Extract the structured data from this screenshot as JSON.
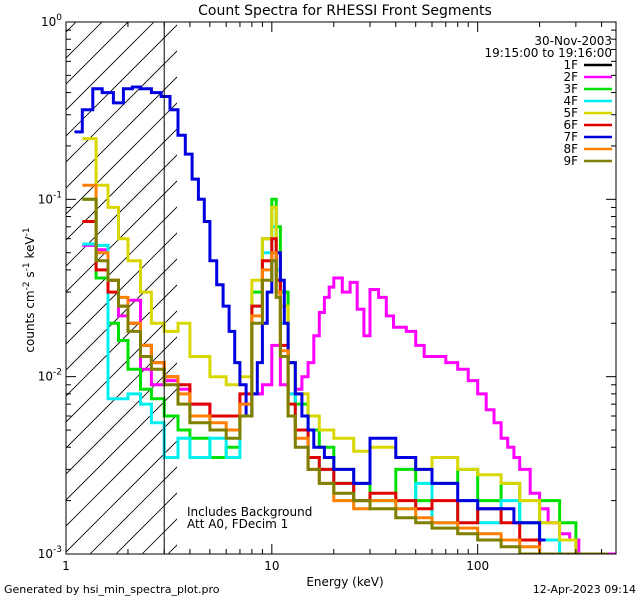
{
  "chart_data": {
    "type": "line",
    "title": "Count Spectra for RHESSI Front Segments",
    "xlabel": "Energy (keV)",
    "ylabel_parts": {
      "base": "counts cm",
      "exp1": "-2",
      "mid": " s",
      "exp2": "-1",
      "mid2": " keV",
      "exp3": "-1"
    },
    "xscale": "log",
    "yscale": "log",
    "xlim": [
      1,
      470
    ],
    "ylim": [
      0.001,
      1.0
    ],
    "xticks": [
      {
        "v": 1,
        "label": "1"
      },
      {
        "v": 10,
        "label": "10"
      },
      {
        "v": 100,
        "label": "100"
      }
    ],
    "yticks": [
      {
        "v": 1,
        "base": "10",
        "exp": "0"
      },
      {
        "v": 0.1,
        "base": "10",
        "exp": "-1"
      },
      {
        "v": 0.01,
        "base": "10",
        "exp": "-2"
      },
      {
        "v": 0.001,
        "base": "10",
        "exp": "-3"
      }
    ],
    "date": "30-Nov-2003",
    "time_range": "19:15:00 to 19:16:00",
    "hatched_below_keV": 3.0,
    "annotation_lines": [
      "Includes Background",
      "Att A0, FDecim 1"
    ],
    "series": [
      {
        "name": "1F",
        "color": "#000000",
        "x": [],
        "y": []
      },
      {
        "name": "2F",
        "color": "#ff00ff",
        "x": [
          1.2,
          1.4,
          1.6,
          1.8,
          2.0,
          2.3,
          2.6,
          3.0,
          3.5,
          4.0,
          5.0,
          6.0,
          7.0,
          8.0,
          9.0,
          10.0,
          11.0,
          12.0,
          13.0,
          14.0,
          15.0,
          16.0,
          17.0,
          18.0,
          19.0,
          20.0,
          22.0,
          24.0,
          26.0,
          28.0,
          30.0,
          33.0,
          36.0,
          39.0,
          42.0,
          45.0,
          50.0,
          55.0,
          60.0,
          70.0,
          80.0,
          90.0,
          100.0,
          110.0,
          120.0,
          130.0,
          140.0,
          150.0,
          160.0,
          180.0,
          200.0,
          220.0,
          250.0,
          280.0,
          310.0,
          350.0,
          400.0,
          450.0
        ],
        "y": [
          0.055,
          0.052,
          0.035,
          0.022,
          0.027,
          0.011,
          0.009,
          0.0095,
          0.0085,
          0.007,
          0.006,
          0.006,
          0.007,
          0.008,
          0.009,
          0.015,
          0.009,
          0.008,
          0.0085,
          0.01,
          0.012,
          0.017,
          0.023,
          0.028,
          0.032,
          0.036,
          0.03,
          0.034,
          0.024,
          0.017,
          0.031,
          0.028,
          0.022,
          0.019,
          0.019,
          0.018,
          0.015,
          0.013,
          0.013,
          0.012,
          0.011,
          0.0095,
          0.008,
          0.0065,
          0.0055,
          0.0045,
          0.004,
          0.0035,
          0.003,
          0.0022,
          0.0018,
          0.0015,
          0.0013,
          0.0012,
          0.001,
          0.001,
          0.001,
          0.001
        ]
      },
      {
        "name": "3F",
        "color": "#00e000",
        "x": [
          1.2,
          1.4,
          1.6,
          1.8,
          2.0,
          2.3,
          2.6,
          3.0,
          3.5,
          4.0,
          5.0,
          6.0,
          7.0,
          8.0,
          9.0,
          10.0,
          10.5,
          11.0,
          12.0,
          13.0,
          15.0,
          17.0,
          20.0,
          25.0,
          30.0,
          40.0,
          50.0,
          60.0,
          80.0,
          100.0,
          130.0,
          160.0,
          200.0,
          250.0,
          300.0,
          400.0
        ],
        "y": [
          0.1,
          0.036,
          0.02,
          0.016,
          0.011,
          0.0085,
          0.0075,
          0.006,
          0.005,
          0.0045,
          0.0035,
          0.004,
          0.006,
          0.03,
          0.06,
          0.1,
          0.07,
          0.03,
          0.012,
          0.007,
          0.005,
          0.004,
          0.003,
          0.0025,
          0.002,
          0.003,
          0.002,
          0.0025,
          0.003,
          0.002,
          0.0025,
          0.0015,
          0.002,
          0.0015,
          0.001,
          0.001
        ]
      },
      {
        "name": "4F",
        "color": "#00f0f0",
        "x": [
          1.2,
          1.4,
          1.6,
          1.8,
          2.0,
          2.3,
          2.6,
          3.0,
          3.5,
          4.0,
          5.0,
          6.0,
          7.0,
          8.0,
          9.0,
          10.0,
          10.5,
          11.0,
          12.0,
          13.0,
          15.0,
          17.0,
          20.0,
          25.0,
          30.0,
          40.0,
          50.0,
          60.0,
          80.0,
          100.0,
          130.0,
          160.0,
          200.0,
          250.0,
          300.0,
          400.0
        ],
        "y": [
          0.056,
          0.055,
          0.0075,
          0.0075,
          0.008,
          0.007,
          0.0055,
          0.0035,
          0.0045,
          0.0035,
          0.0045,
          0.0035,
          0.006,
          0.025,
          0.05,
          0.07,
          0.04,
          0.02,
          0.008,
          0.005,
          0.0035,
          0.003,
          0.0025,
          0.002,
          0.002,
          0.0018,
          0.0025,
          0.0015,
          0.002,
          0.0015,
          0.002,
          0.0015,
          0.0012,
          0.001,
          0.001,
          0.001
        ]
      },
      {
        "name": "5F",
        "color": "#d8d800",
        "x": [
          1.2,
          1.4,
          1.6,
          1.8,
          2.0,
          2.3,
          2.6,
          3.0,
          3.5,
          4.0,
          5.0,
          6.0,
          7.0,
          8.0,
          9.0,
          10.0,
          10.5,
          11.0,
          12.0,
          13.0,
          15.0,
          17.0,
          20.0,
          25.0,
          30.0,
          40.0,
          50.0,
          60.0,
          80.0,
          100.0,
          130.0,
          160.0,
          200.0,
          250.0,
          300.0,
          400.0
        ],
        "y": [
          0.22,
          0.12,
          0.09,
          0.06,
          0.045,
          0.03,
          0.02,
          0.018,
          0.02,
          0.013,
          0.01,
          0.009,
          0.01,
          0.035,
          0.06,
          0.09,
          0.05,
          0.025,
          0.012,
          0.008,
          0.006,
          0.005,
          0.0045,
          0.0038,
          0.004,
          0.0035,
          0.003,
          0.0035,
          0.003,
          0.0028,
          0.0025,
          0.002,
          0.0015,
          0.0012,
          0.001,
          0.001
        ]
      },
      {
        "name": "6F",
        "color": "#e00000",
        "x": [
          1.2,
          1.4,
          1.6,
          1.8,
          2.0,
          2.3,
          2.6,
          3.0,
          3.5,
          4.0,
          5.0,
          6.0,
          7.0,
          8.0,
          9.0,
          10.0,
          10.5,
          11.0,
          12.0,
          13.0,
          15.0,
          17.0,
          20.0,
          25.0,
          30.0,
          40.0,
          50.0,
          60.0,
          80.0,
          100.0,
          130.0,
          160.0,
          200.0,
          250.0,
          300.0,
          400.0
        ],
        "y": [
          0.075,
          0.04,
          0.03,
          0.025,
          0.02,
          0.015,
          0.012,
          0.01,
          0.009,
          0.007,
          0.006,
          0.006,
          0.008,
          0.025,
          0.045,
          0.06,
          0.035,
          0.015,
          0.007,
          0.005,
          0.0035,
          0.003,
          0.0025,
          0.002,
          0.0022,
          0.002,
          0.0018,
          0.002,
          0.0015,
          0.0018,
          0.0015,
          0.0012,
          0.001,
          0.001,
          0.001,
          0.001
        ]
      },
      {
        "name": "7F",
        "color": "#0000e0",
        "x": [
          1.1,
          1.2,
          1.35,
          1.5,
          1.7,
          1.9,
          2.1,
          2.3,
          2.6,
          2.9,
          3.2,
          3.5,
          3.8,
          4.1,
          4.4,
          4.7,
          5.0,
          5.4,
          5.8,
          6.2,
          6.6,
          7.0,
          7.5,
          8.0,
          8.5,
          9.0,
          9.5,
          10.0,
          10.5,
          11.0,
          11.5,
          12.0,
          13.0,
          14.0,
          15.0,
          16.0,
          18.0,
          20.0,
          25.0,
          30.0,
          40.0,
          50.0,
          60.0,
          80.0,
          100.0,
          150.0,
          200.0
        ],
        "y": [
          0.24,
          0.32,
          0.42,
          0.4,
          0.35,
          0.42,
          0.43,
          0.42,
          0.4,
          0.38,
          0.32,
          0.23,
          0.18,
          0.13,
          0.1,
          0.075,
          0.045,
          0.033,
          0.025,
          0.018,
          0.012,
          0.009,
          0.006,
          0.008,
          0.012,
          0.02,
          0.03,
          0.045,
          0.05,
          0.035,
          0.02,
          0.012,
          0.008,
          0.006,
          0.005,
          0.004,
          0.0035,
          0.003,
          0.0025,
          0.0045,
          0.0035,
          0.003,
          0.0025,
          0.002,
          0.0018,
          0.0015,
          0.0012
        ]
      },
      {
        "name": "8F",
        "color": "#ff8000",
        "x": [
          1.2,
          1.4,
          1.6,
          1.8,
          2.0,
          2.3,
          2.6,
          3.0,
          3.5,
          4.0,
          5.0,
          6.0,
          7.0,
          8.0,
          9.0,
          10.0,
          10.5,
          11.0,
          12.0,
          13.0,
          15.0,
          17.0,
          20.0,
          25.0,
          30.0,
          40.0,
          50.0,
          60.0,
          80.0,
          100.0,
          130.0,
          160.0,
          200.0,
          250.0,
          300.0,
          400.0
        ],
        "y": [
          0.12,
          0.05,
          0.035,
          0.028,
          0.02,
          0.015,
          0.012,
          0.01,
          0.008,
          0.006,
          0.0055,
          0.005,
          0.007,
          0.022,
          0.04,
          0.05,
          0.03,
          0.014,
          0.006,
          0.0045,
          0.003,
          0.0025,
          0.002,
          0.0018,
          0.002,
          0.0018,
          0.0016,
          0.0015,
          0.0014,
          0.0013,
          0.0012,
          0.0011,
          0.001,
          0.001,
          0.001,
          0.001
        ]
      },
      {
        "name": "9F",
        "color": "#7f7f00",
        "x": [
          1.2,
          1.4,
          1.6,
          1.8,
          2.0,
          2.3,
          2.6,
          3.0,
          3.5,
          4.0,
          5.0,
          6.0,
          7.0,
          8.0,
          9.0,
          10.0,
          10.5,
          11.0,
          12.0,
          13.0,
          15.0,
          17.0,
          20.0,
          25.0,
          30.0,
          40.0,
          50.0,
          60.0,
          80.0,
          100.0,
          130.0,
          160.0,
          200.0,
          250.0,
          300.0,
          400.0
        ],
        "y": [
          0.1,
          0.045,
          0.035,
          0.025,
          0.018,
          0.013,
          0.011,
          0.009,
          0.007,
          0.0055,
          0.005,
          0.0045,
          0.006,
          0.02,
          0.035,
          0.045,
          0.028,
          0.013,
          0.006,
          0.004,
          0.003,
          0.0025,
          0.0022,
          0.002,
          0.0018,
          0.0016,
          0.0015,
          0.0014,
          0.0013,
          0.0012,
          0.0011,
          0.001,
          0.001,
          0.001,
          0.001,
          0.001
        ]
      }
    ]
  },
  "footer": {
    "generated_by": "Generated by hsi_min_spectra_plot.pro",
    "timestamp": "12-Apr-2023 09:14"
  }
}
